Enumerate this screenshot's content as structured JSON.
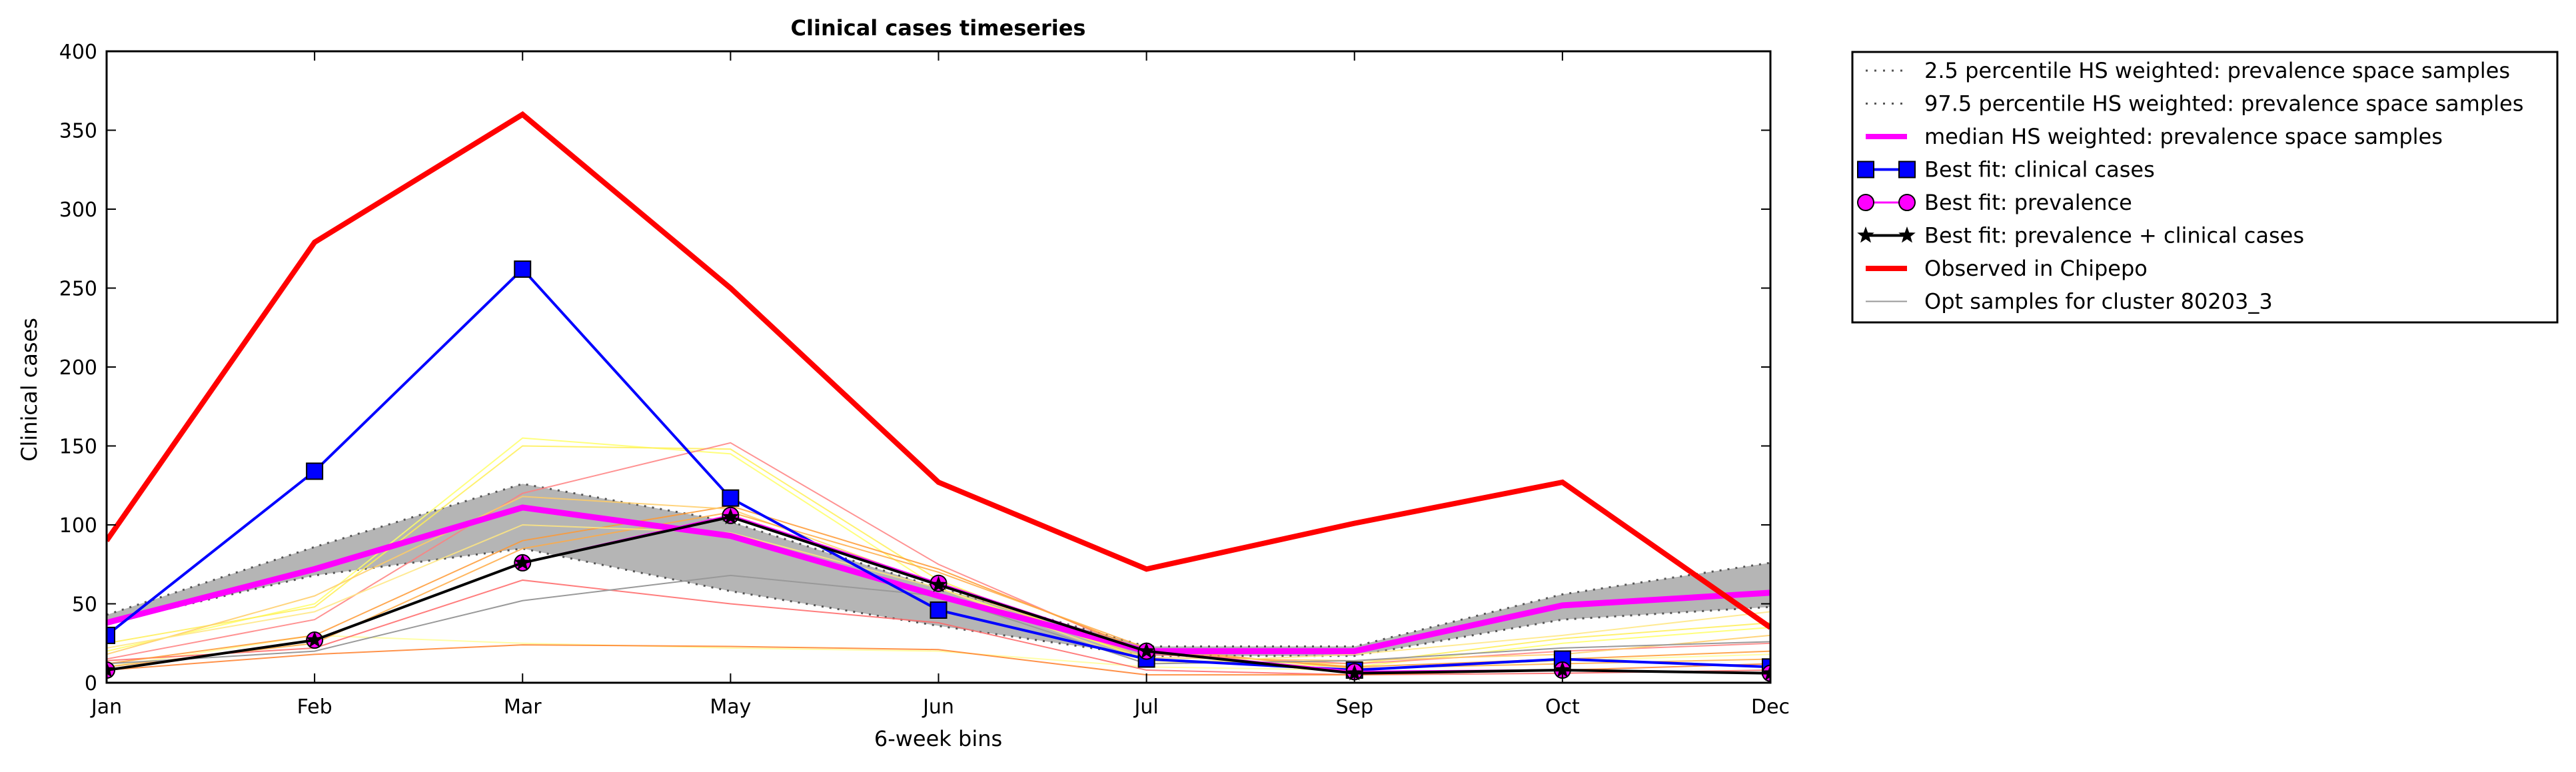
{
  "chart_data": {
    "type": "line",
    "title": "Clinical cases timeseries",
    "xlabel": "6-week bins",
    "ylabel": "Clinical cases",
    "categories": [
      "Jan",
      "Feb",
      "Mar",
      "May",
      "Jun",
      "Jul",
      "Sep",
      "Oct",
      "Dec"
    ],
    "ylim": [
      0,
      400
    ],
    "yticks": [
      "0",
      "50",
      "100",
      "150",
      "200",
      "250",
      "300",
      "350",
      "400"
    ],
    "grid": false,
    "legend_position": "outside-top-right",
    "band": {
      "lower_name": "2.5 percentile HS weighted: prevalence space samples",
      "upper_name": "97.5 percentile HS weighted: prevalence space samples",
      "lower": [
        38,
        68,
        85,
        58,
        36,
        17,
        17,
        40,
        48
      ],
      "upper": [
        43,
        86,
        126,
        102,
        60,
        23,
        23,
        56,
        76
      ],
      "fill_color": "#b5b5b5",
      "line_color": "#555555"
    },
    "series": [
      {
        "name": "median HS weighted: prevalence space samples",
        "values": [
          38,
          72,
          111,
          93,
          55,
          20,
          20,
          49,
          57
        ],
        "color": "#ff00ff",
        "marker": "none",
        "width": 9
      },
      {
        "name": "Best fit: clinical cases",
        "values": [
          30,
          134,
          262,
          117,
          46,
          15,
          8,
          15,
          10
        ],
        "color": "#0000ff",
        "marker": "square",
        "width": 4
      },
      {
        "name": "Best fit: prevalence",
        "values": [
          8,
          27,
          76,
          106,
          63,
          20,
          7,
          8,
          6
        ],
        "color": "#ff00ff",
        "marker": "circle",
        "width": 3
      },
      {
        "name": "Best fit: prevalence + clinical cases",
        "values": [
          8,
          27,
          76,
          105,
          62,
          20,
          6,
          8,
          6
        ],
        "color": "#000000",
        "marker": "star",
        "width": 4
      },
      {
        "name": "Observed in Chipepo",
        "values": [
          90,
          279,
          360,
          250,
          127,
          72,
          101,
          127,
          35
        ],
        "color": "#ff0000",
        "marker": "none",
        "width": 8
      },
      {
        "name": "Opt samples for cluster 80203_3",
        "values": [
          12,
          20,
          52,
          68,
          55,
          12,
          14,
          22,
          26
        ],
        "color": "#999999",
        "marker": "none",
        "width": 2
      }
    ],
    "opt_samples": [
      {
        "values": [
          20,
          50,
          155,
          145,
          60,
          15,
          10,
          25,
          35
        ],
        "color": "#ffff66"
      },
      {
        "values": [
          25,
          48,
          150,
          148,
          65,
          14,
          12,
          28,
          38
        ],
        "color": "#ffee55"
      },
      {
        "values": [
          10,
          30,
          25,
          22,
          20,
          10,
          8,
          14,
          18
        ],
        "color": "#ffff99"
      },
      {
        "values": [
          14,
          22,
          65,
          50,
          38,
          8,
          5,
          6,
          8
        ],
        "color": "#ff6666"
      },
      {
        "values": [
          8,
          18,
          24,
          23,
          21,
          5,
          5,
          8,
          12
        ],
        "color": "#ff7f2a"
      },
      {
        "values": [
          15,
          40,
          120,
          152,
          75,
          18,
          12,
          20,
          25
        ],
        "color": "#ff7f7f"
      },
      {
        "values": [
          12,
          30,
          90,
          112,
          72,
          20,
          10,
          15,
          20
        ],
        "color": "#ff9933"
      },
      {
        "values": [
          18,
          55,
          118,
          110,
          62,
          16,
          14,
          18,
          30
        ],
        "color": "#ffcc66"
      },
      {
        "values": [
          10,
          25,
          85,
          108,
          70,
          22,
          9,
          12,
          15
        ],
        "color": "#ffaa44"
      },
      {
        "values": [
          22,
          45,
          100,
          95,
          60,
          12,
          18,
          30,
          45
        ],
        "color": "#ffe680"
      }
    ]
  }
}
